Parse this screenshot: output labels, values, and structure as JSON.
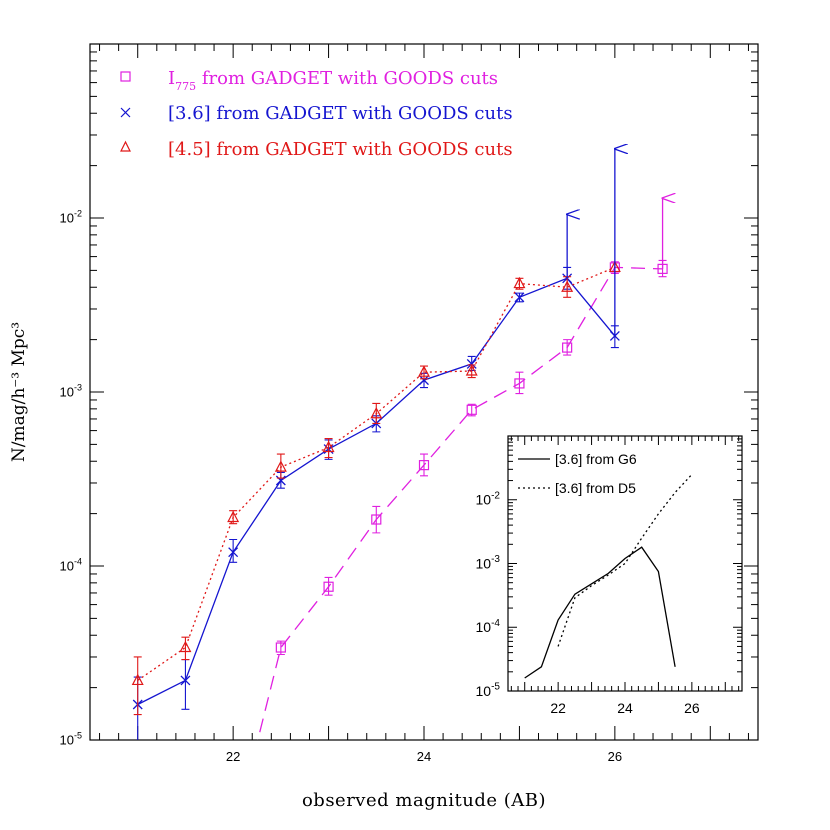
{
  "chart_data": [
    {
      "type": "line",
      "xlabel": "observed magnitude (AB)",
      "ylabel": "N/mag/h⁻³ Mpc³",
      "xlim": [
        20.5,
        27.5
      ],
      "ylim": [
        1e-05,
        0.1
      ],
      "yscale": "log",
      "x_ticks": [
        "22",
        "24",
        "26"
      ],
      "y_ticks": [
        {
          "base": "10",
          "exp": "-5"
        },
        {
          "base": "10",
          "exp": "-4"
        },
        {
          "base": "10",
          "exp": "-3"
        },
        {
          "base": "10",
          "exp": "-2"
        }
      ],
      "legend_position": "top-left",
      "series": [
        {
          "name": "I",
          "name_sub": "775",
          "name_suffix": " from GADGET with GOODS cuts",
          "color": "#e020e0",
          "marker": "square",
          "linestyle": "dashed",
          "x": [
            22.0,
            22.5,
            23.0,
            23.5,
            24.0,
            24.5,
            25.0,
            25.5,
            26.0,
            26.5
          ],
          "y": [
            2.7e-06,
            3.4e-05,
            7.6e-05,
            0.000185,
            0.00038,
            0.00079,
            0.00112,
            0.0018,
            0.0052,
            0.0051
          ],
          "err_low": [
            null,
            3.1e-05,
            6.8e-05,
            0.000155,
            0.00033,
            0.00073,
            0.00098,
            0.00163,
            0.0048,
            0.0046
          ],
          "err_high": [
            null,
            3.7e-05,
            8.6e-05,
            0.00022,
            0.00044,
            0.00085,
            0.0013,
            0.002,
            0.0056,
            0.0057
          ],
          "markers_from_index": 1,
          "lower_limits": [
            {
              "x": 26.5,
              "y_top": 0.013
            }
          ]
        },
        {
          "name": "[3.6] from GADGET with GOODS cuts",
          "color": "#1515d0",
          "marker": "x",
          "linestyle": "solid",
          "x": [
            21.0,
            21.5,
            22.0,
            22.5,
            23.0,
            23.5,
            24.0,
            24.5,
            25.0,
            25.5,
            26.0
          ],
          "y": [
            1.6e-05,
            2.2e-05,
            0.00012,
            0.00031,
            0.00047,
            0.00066,
            0.00117,
            0.00145,
            0.0035,
            0.0045,
            0.0021
          ],
          "err_low": [
            8.5e-06,
            1.5e-05,
            0.000105,
            0.00028,
            0.00041,
            0.00059,
            0.00106,
            0.00133,
            0.0033,
            0.0039,
            0.0018
          ],
          "err_high": [
            2.3e-05,
            2.9e-05,
            0.000142,
            0.000345,
            0.00053,
            0.00073,
            0.00128,
            0.0016,
            0.0037,
            0.0052,
            0.0024
          ],
          "lower_limits": [
            {
              "x": 25.5,
              "y_top": 0.0105
            },
            {
              "x": 26.0,
              "y_top": 0.025
            }
          ]
        },
        {
          "name": "[4.5] from GADGET with GOODS cuts",
          "color": "#e01818",
          "marker": "triangle",
          "linestyle": "dotted",
          "x": [
            21.0,
            21.5,
            22.0,
            22.5,
            23.0,
            23.5,
            24.0,
            24.5,
            25.0,
            25.5,
            26.0
          ],
          "y": [
            2.2e-05,
            3.4e-05,
            0.00019,
            0.00037,
            0.00048,
            0.00075,
            0.0013,
            0.00132,
            0.0042,
            0.004,
            0.0052
          ],
          "err_low": [
            1.4e-05,
            2.9e-05,
            0.000175,
            0.00032,
            0.00042,
            0.00066,
            0.00119,
            0.00121,
            0.0039,
            0.0035,
            null
          ],
          "err_high": [
            3e-05,
            3.9e-05,
            0.000208,
            0.00044,
            0.00054,
            0.00086,
            0.00141,
            0.00143,
            0.0045,
            0.0046,
            null
          ]
        }
      ]
    },
    {
      "type": "line",
      "inset": true,
      "xlim": [
        20.5,
        27.5
      ],
      "ylim": [
        1e-05,
        0.1
      ],
      "yscale": "log",
      "x_ticks": [
        "22",
        "24",
        "26"
      ],
      "y_ticks": [
        {
          "base": "10",
          "exp": "-5"
        },
        {
          "base": "10",
          "exp": "-4"
        },
        {
          "base": "10",
          "exp": "-3"
        },
        {
          "base": "10",
          "exp": "-2"
        }
      ],
      "legend_position": "top-left",
      "series": [
        {
          "name": "[3.6] from G6",
          "color": "#000000",
          "linestyle": "solid",
          "x": [
            21.0,
            21.5,
            22.0,
            22.5,
            23.0,
            23.5,
            24.0,
            24.5,
            25.0,
            25.5
          ],
          "y": [
            1.6e-05,
            2.4e-05,
            0.00013,
            0.00033,
            0.00048,
            0.0007,
            0.0012,
            0.0018,
            0.00075,
            2.4e-05
          ]
        },
        {
          "name": "[3.6] from D5",
          "color": "#000000",
          "linestyle": "dotted",
          "x": [
            22.0,
            22.5,
            23.0,
            23.5,
            24.0,
            24.5,
            25.0,
            25.5,
            26.0
          ],
          "y": [
            5e-05,
            0.00029,
            0.00045,
            0.00066,
            0.001,
            0.0025,
            0.006,
            0.013,
            0.025
          ]
        }
      ]
    }
  ]
}
